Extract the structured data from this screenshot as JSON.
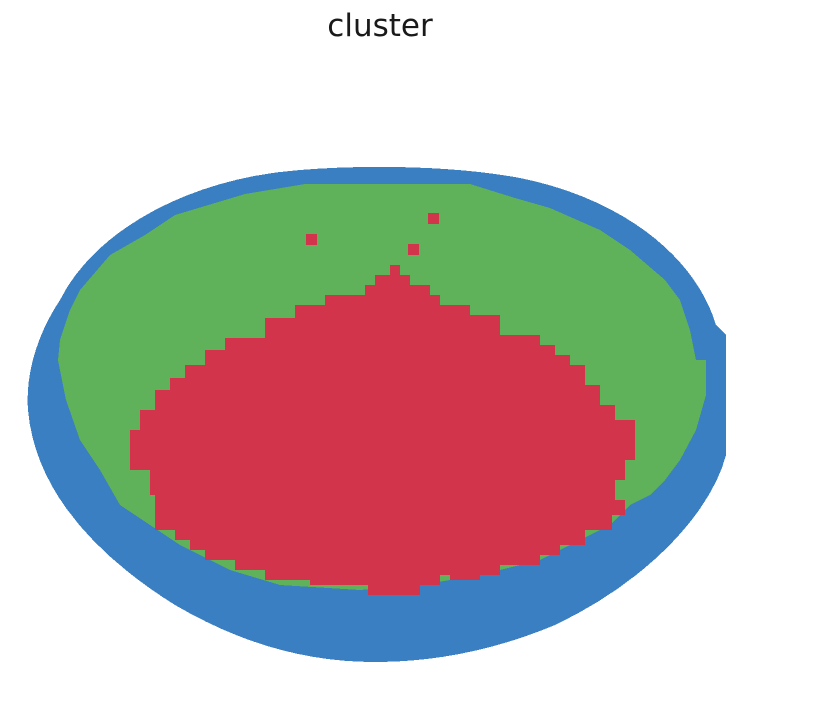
{
  "figure": {
    "title": "cluster",
    "colors": {
      "outer": "#3a7fc1",
      "middle": "#5fb15a",
      "inner": "#d1344b",
      "background": "#ffffff"
    }
  }
}
